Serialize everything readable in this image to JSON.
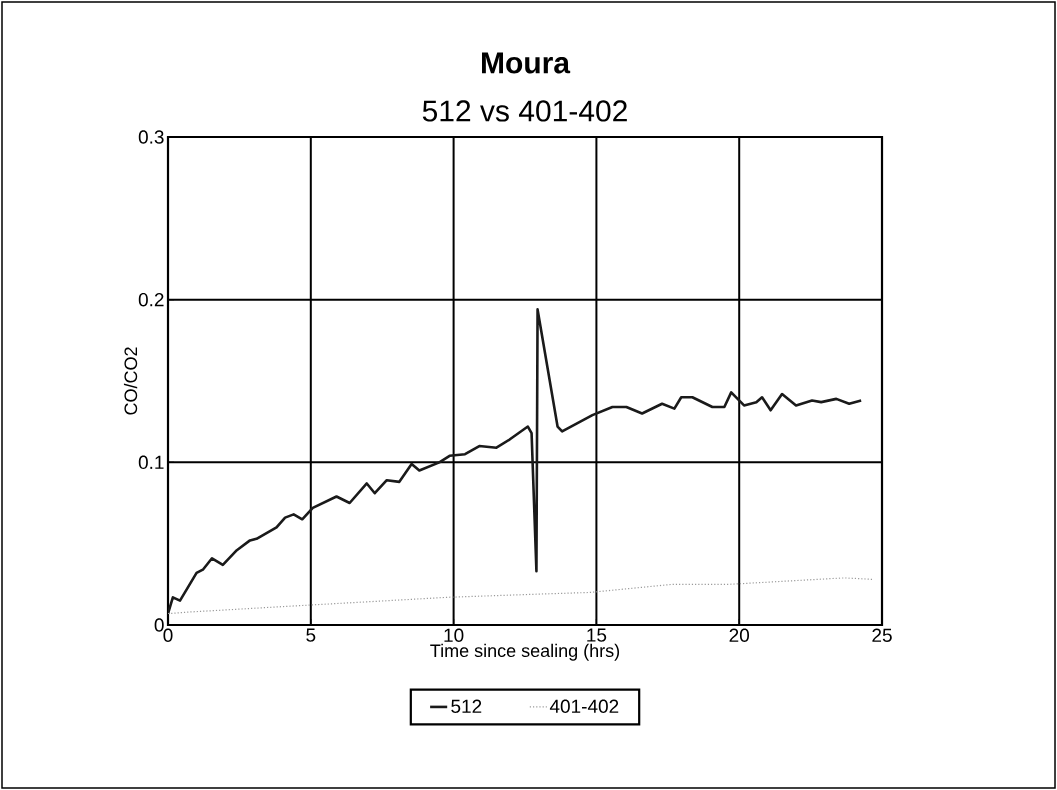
{
  "chart_data": {
    "type": "line",
    "title": "Moura",
    "subtitle": "512 vs 401-402",
    "xlabel": "Time since sealing (hrs)",
    "ylabel": "CO/CO2",
    "xlim": [
      0,
      25
    ],
    "ylim": [
      0,
      0.3
    ],
    "xticks": [
      0,
      5,
      10,
      15,
      20,
      25
    ],
    "yticks": [
      0,
      0.1,
      0.2,
      0.3
    ],
    "grid": true,
    "legend": "bottom",
    "marker": "none",
    "series": [
      {
        "name": "512",
        "color": "#1a1a1a",
        "line_style": "solid",
        "x": [
          0,
          0.17,
          0.42,
          1.0,
          1.22,
          1.54,
          1.92,
          2.41,
          2.87,
          3.1,
          3.8,
          4.1,
          4.4,
          4.7,
          5.07,
          5.9,
          6.36,
          6.96,
          7.24,
          7.66,
          8.1,
          8.53,
          8.8,
          9.5,
          9.86,
          10.4,
          10.9,
          11.5,
          11.96,
          12.6,
          12.73,
          12.9,
          12.94,
          13.64,
          13.8,
          14.86,
          15.56,
          16.05,
          16.6,
          17.3,
          17.73,
          17.97,
          18.36,
          19.06,
          19.48,
          19.72,
          20.17,
          20.6,
          20.8,
          21.1,
          21.5,
          21.99,
          22.55,
          22.87,
          23.4,
          23.85,
          24.27
        ],
        "values": [
          0.007,
          0.017,
          0.015,
          0.032,
          0.034,
          0.041,
          0.037,
          0.046,
          0.052,
          0.053,
          0.06,
          0.066,
          0.068,
          0.065,
          0.072,
          0.079,
          0.075,
          0.087,
          0.081,
          0.089,
          0.088,
          0.099,
          0.095,
          0.1,
          0.104,
          0.105,
          0.11,
          0.109,
          0.114,
          0.122,
          0.118,
          0.033,
          0.194,
          0.122,
          0.119,
          0.129,
          0.134,
          0.134,
          0.13,
          0.136,
          0.133,
          0.14,
          0.14,
          0.134,
          0.134,
          0.143,
          0.135,
          0.137,
          0.14,
          0.132,
          0.142,
          0.135,
          0.138,
          0.137,
          0.139,
          0.136,
          0.138
        ]
      },
      {
        "name": "401-402",
        "color": "#999999",
        "line_style": "dotted",
        "x": [
          0,
          0.77,
          4.7,
          9.76,
          13,
          14.76,
          17.66,
          19.65,
          23.7,
          24.7
        ],
        "values": [
          0.007,
          0.008,
          0.012,
          0.017,
          0.019,
          0.02,
          0.025,
          0.025,
          0.029,
          0.028
        ]
      }
    ]
  }
}
